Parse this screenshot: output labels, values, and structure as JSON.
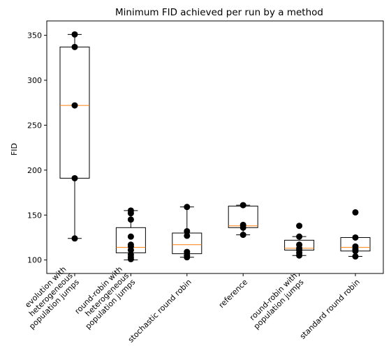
{
  "chart_data": {
    "type": "box",
    "title": "Minimum FID achieved per run by a method",
    "xlabel": "",
    "ylabel": "FID",
    "ylim": [
      85,
      366
    ],
    "yticks": [
      100,
      150,
      200,
      250,
      300,
      350
    ],
    "grid": false,
    "colors": {
      "box": "#000000",
      "median": "#ff7f0e",
      "point": "#000000"
    },
    "categories": [
      {
        "label_lines": [
          "evolution with",
          "heterogeneous",
          "population jumps"
        ],
        "whisker_low": 124,
        "q1": 191,
        "median": 272,
        "q3": 337,
        "whisker_high": 351,
        "points": [
          351,
          337,
          272,
          191,
          124
        ]
      },
      {
        "label_lines": [
          "round-robin with",
          "heterogeneous",
          "population jumps"
        ],
        "whisker_low": 100,
        "q1": 108,
        "median": 114,
        "q3": 136,
        "whisker_high": 155,
        "points": [
          155,
          152,
          145,
          126,
          117,
          115,
          111,
          106,
          103,
          101
        ]
      },
      {
        "label_lines": [
          "stochastic round robin"
        ],
        "whisker_low": 103,
        "q1": 107,
        "median": 117,
        "q3": 130,
        "whisker_high": 159,
        "points": [
          159,
          132,
          127,
          109,
          105,
          103
        ]
      },
      {
        "label_lines": [
          "reference"
        ],
        "whisker_low": 128,
        "q1": 136,
        "median": 138,
        "q3": 160,
        "whisker_high": 161,
        "points": [
          161,
          139,
          136,
          128
        ]
      },
      {
        "label_lines": [
          "round-robin with",
          "population jumps"
        ],
        "whisker_low": 105,
        "q1": 111,
        "median": 113,
        "q3": 122,
        "whisker_high": 126,
        "points": [
          138,
          126,
          117,
          113,
          111,
          108,
          105
        ]
      },
      {
        "label_lines": [
          "standard round robin"
        ],
        "whisker_low": 104,
        "q1": 110,
        "median": 114,
        "q3": 125,
        "whisker_high": 125,
        "points": [
          153,
          125,
          115,
          112,
          110,
          104
        ]
      }
    ]
  }
}
